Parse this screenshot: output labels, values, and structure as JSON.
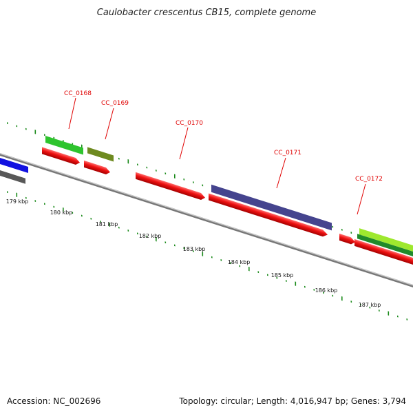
{
  "title": "Caulobacter crescentus CB15, complete genome",
  "footer": {
    "accession": "Accession: NC_002696",
    "summary": "Topology: circular; Length: 4,016,947 bp; Genes: 3,794"
  },
  "colors": {
    "backbone": "#8a8a8a",
    "tick": "#1a8a1a",
    "cds": "#ee1111",
    "label": "#e00000"
  },
  "scale_labels": [
    "179 kbp",
    "180 kbp",
    "181 kbp",
    "182 kbp",
    "183 kbp",
    "184 kbp",
    "185 kbp",
    "186 kbp",
    "187 kbp"
  ],
  "gene_labels": [
    "CC_0168",
    "CC_0169",
    "CC_0170",
    "CC_0171",
    "CC_0172"
  ]
}
